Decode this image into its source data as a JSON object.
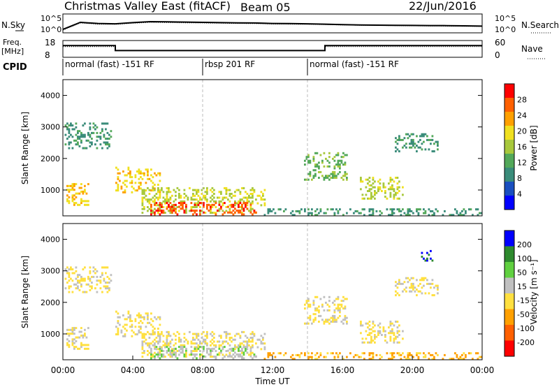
{
  "header": {
    "title": "Christmas Valley East (fitACF)",
    "beam": "Beam 05",
    "date": "22/Jun/2016"
  },
  "left_labels": {
    "nsky": "N.Sky",
    "freq_line1": "Freq.",
    "freq_line2": "[MHz]",
    "cpid": "CPID"
  },
  "right_labels": {
    "nsearch": "N.Search",
    "nave": "Nave"
  },
  "colors": {
    "power_scale": [
      "#0000ff",
      "#1a4fbf",
      "#3a8c7a",
      "#53a85a",
      "#a8c83c",
      "#f0e020",
      "#ffa000",
      "#ff6000",
      "#ff0000"
    ],
    "velocity_scale": [
      "#ff0000",
      "#ff6000",
      "#ffa000",
      "#ffe040",
      "#c0c0c0",
      "#60d040",
      "#2e8a2e",
      "#0000ff"
    ],
    "noise_line": "#000000"
  },
  "chart_data": [
    {
      "type": "line",
      "name": "noise",
      "yaxis_left_ticks": [
        "10^5",
        "10^0"
      ],
      "yaxis_right_ticks": [
        "10^5",
        "10^0"
      ],
      "x": [
        0,
        1,
        2,
        3,
        4,
        5,
        6,
        7,
        8,
        9,
        10,
        11,
        12,
        13,
        14,
        15,
        16,
        17,
        18,
        19,
        20,
        21,
        22,
        23,
        24
      ],
      "series": [
        {
          "name": "N.Sky",
          "values": [
            8,
            600,
            300,
            250,
            500,
            900,
            800,
            700,
            600,
            500,
            450,
            400,
            300,
            280,
            250,
            200,
            150,
            120,
            110,
            100,
            90,
            85,
            80,
            70,
            60
          ]
        },
        {
          "name": "N.Search",
          "values": [
            5,
            400,
            200,
            180,
            350,
            600,
            500,
            450,
            400,
            350,
            300,
            280,
            220,
            200,
            180,
            150,
            120,
            100,
            90,
            80,
            70,
            65,
            60,
            55,
            50
          ]
        }
      ]
    },
    {
      "type": "line",
      "name": "freq-nave",
      "yaxis_left_ticks": [
        "18",
        "8"
      ],
      "yaxis_right_ticks": [
        "60",
        "0"
      ],
      "x": [
        0,
        3.0,
        3.0,
        15.0,
        15.0,
        24
      ],
      "series": [
        {
          "name": "Freq.",
          "values": [
            15,
            15,
            12,
            12,
            15,
            15
          ]
        },
        {
          "name": "Nave",
          "values": [
            38,
            38,
            24,
            24,
            38,
            38
          ]
        }
      ]
    },
    {
      "type": "table",
      "name": "cpid",
      "segments": [
        {
          "label": "normal (fast) -151 RF",
          "start": 0,
          "end": 8
        },
        {
          "label": "rbsp 201 RF",
          "start": 8,
          "end": 14
        },
        {
          "label": "normal (fast) -151 RF",
          "start": 14,
          "end": 24
        }
      ]
    },
    {
      "type": "heatmap",
      "name": "power",
      "ylabel": "Slant Range [km]",
      "yticks": [
        1000,
        2000,
        3000,
        4000
      ],
      "ylim": [
        180,
        4500
      ],
      "xlim": [
        0,
        24
      ],
      "colorbar_label": "Power [dB]",
      "colorbar_ticks": [
        "4",
        "8",
        "12",
        "16",
        "20",
        "24",
        "28"
      ],
      "regions": [
        {
          "t0": 0.2,
          "t1": 1.5,
          "r0": 500,
          "r1": 1200,
          "level": 6
        },
        {
          "t0": 0.1,
          "t1": 2.8,
          "r0": 2300,
          "r1": 3100,
          "level": 3
        },
        {
          "t0": 3.0,
          "t1": 5.5,
          "r0": 900,
          "r1": 1700,
          "level": 6
        },
        {
          "t0": 4.5,
          "t1": 11.5,
          "r0": 250,
          "r1": 1050,
          "level": 5
        },
        {
          "t0": 5.0,
          "t1": 11.0,
          "r0": 200,
          "r1": 600,
          "level": 8
        },
        {
          "t0": 13.8,
          "t1": 16.2,
          "r0": 1300,
          "r1": 2200,
          "level": 4
        },
        {
          "t0": 17.0,
          "t1": 19.5,
          "r0": 700,
          "r1": 1400,
          "level": 5
        },
        {
          "t0": 19.0,
          "t1": 21.5,
          "r0": 2200,
          "r1": 2800,
          "level": 3
        },
        {
          "t0": 11.5,
          "t1": 24.0,
          "r0": 180,
          "r1": 420,
          "level": 3
        }
      ]
    },
    {
      "type": "heatmap",
      "name": "velocity",
      "ylabel": "Slant Range [km]",
      "yticks": [
        1000,
        2000,
        3000,
        4000
      ],
      "ylim": [
        180,
        4500
      ],
      "xlim": [
        0,
        24
      ],
      "xticks": [
        "00:00",
        "04:00",
        "08:00",
        "12:00",
        "16:00",
        "20:00",
        "00:00"
      ],
      "xlabel": "Time UT",
      "colorbar_label": "Velocity [m s⁻¹]",
      "colorbar_ticks": [
        "-200",
        "-100",
        "-50",
        "-15",
        "15",
        "50",
        "100",
        "200"
      ],
      "regions": [
        {
          "t0": 0.2,
          "t1": 1.5,
          "r0": 500,
          "r1": 1200,
          "level": 4
        },
        {
          "t0": 0.1,
          "t1": 2.8,
          "r0": 2300,
          "r1": 3100,
          "level": 4
        },
        {
          "t0": 3.0,
          "t1": 5.5,
          "r0": 900,
          "r1": 1700,
          "level": 4
        },
        {
          "t0": 4.5,
          "t1": 11.5,
          "r0": 250,
          "r1": 1050,
          "level": 4
        },
        {
          "t0": 5.0,
          "t1": 11.0,
          "r0": 200,
          "r1": 600,
          "level": 5
        },
        {
          "t0": 13.8,
          "t1": 16.2,
          "r0": 1300,
          "r1": 2200,
          "level": 4
        },
        {
          "t0": 17.0,
          "t1": 19.5,
          "r0": 700,
          "r1": 1400,
          "level": 4
        },
        {
          "t0": 19.0,
          "t1": 21.5,
          "r0": 2200,
          "r1": 2800,
          "level": 4
        },
        {
          "t0": 11.5,
          "t1": 24.0,
          "r0": 180,
          "r1": 420,
          "level": 3
        },
        {
          "t0": 20.5,
          "t1": 21.2,
          "r0": 3300,
          "r1": 3700,
          "level": 7
        }
      ]
    }
  ]
}
